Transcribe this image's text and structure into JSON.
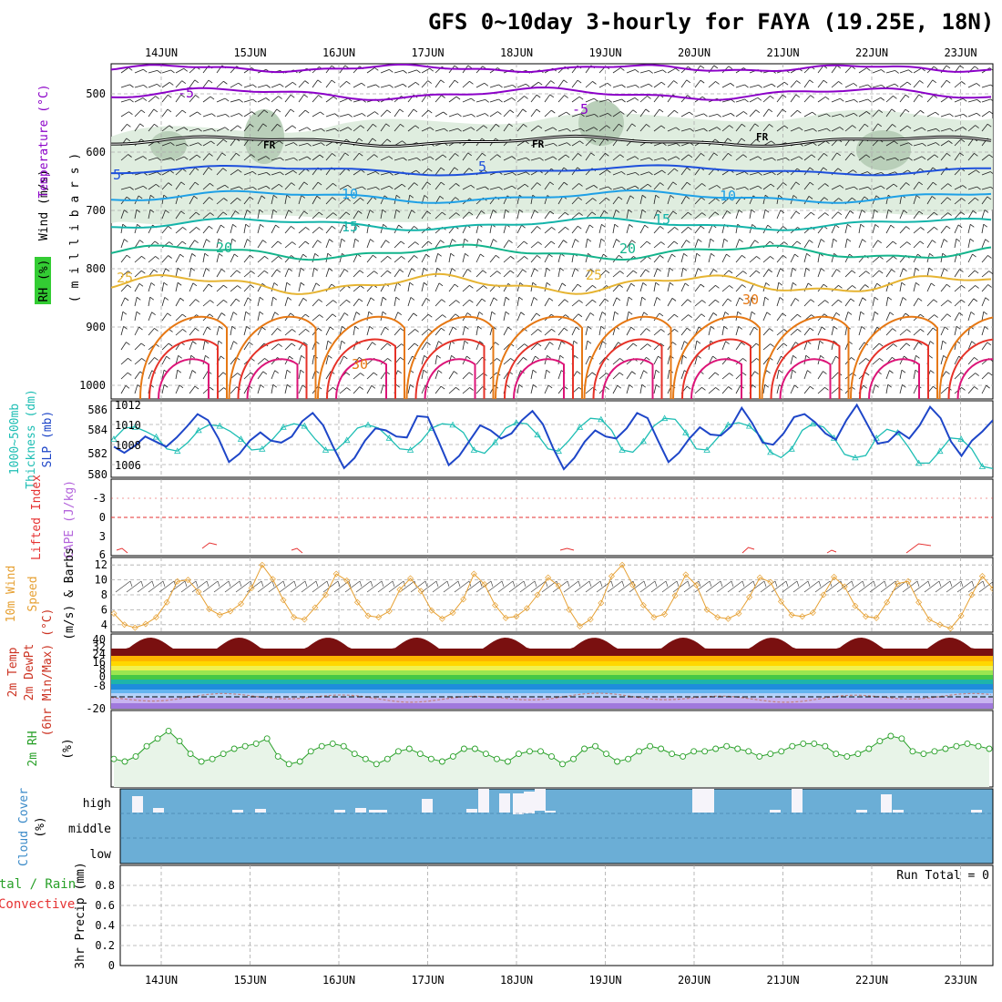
{
  "title": "GFS 0~10day 3-hourly for FAYA (19.25E, 18N)",
  "dates": [
    "14JUN",
    "15JUN",
    "16JUN",
    "17JUN",
    "18JUN",
    "19JUN",
    "20JUN",
    "21JUN",
    "22JUN",
    "23JUN"
  ],
  "colors": {
    "wind_line": "#000000",
    "temp_cold": "#8b00c8",
    "temp_blue": "#1e50dc",
    "temp_cyan": "#1ea0e6",
    "temp_teal": "#14b4aa",
    "temp_green": "#14b48c",
    "temp_yellow": "#e6b432",
    "temp_orange": "#e67814",
    "temp_red": "#e63228",
    "temp_pink": "#dc1478",
    "thickness": "#1ebeb4",
    "slp": "#1e46c8",
    "lifted": "#e63232",
    "cape": "#b464dc",
    "wind10": "#e6a032",
    "rh2m": "#28a028",
    "cloud": "#6baed6",
    "precip_total": "#28a028",
    "precip_conv": "#e63232"
  },
  "panels": {
    "upper": {
      "label_wind": "Wind (m/s)",
      "label_temp": "Temperature (°C)",
      "label_rh": "RH (%)",
      "label_levels": "( m i l l i b a r s )",
      "levels": [
        "500",
        "600",
        "700",
        "800",
        "900",
        "1000"
      ],
      "contour_labels": [
        "-5",
        "-5",
        "5",
        "5",
        "10",
        "10",
        "15",
        "15",
        "20",
        "20",
        "25",
        "25",
        "30",
        "30",
        "FR",
        "FR",
        "FR"
      ]
    },
    "thickness": {
      "label_a": "1000~500mb",
      "label_b": "Thickness (dm)",
      "label_c": "SLP (mb)",
      "left_ticks": [
        "586",
        "584",
        "582",
        "580"
      ],
      "right_ticks": [
        "1012",
        "1010",
        "1008",
        "1006"
      ]
    },
    "stability": {
      "label_a": "Lifted Index",
      "label_b": "CAPE (J/kg)",
      "ticks": [
        "-3",
        "0",
        "3",
        "6"
      ]
    },
    "wind10": {
      "label_a": "10m Wind",
      "label_b": "Speed",
      "label_c": "(m/s) & Barbs",
      "ticks": [
        "12",
        "10",
        "8",
        "6",
        "4"
      ]
    },
    "temp2m": {
      "label_a": "2m Temp",
      "label_b": "2m DewPt",
      "label_c": "(6hr Min/Max) (°C)",
      "ticks": [
        "40",
        "32",
        "24",
        "16",
        "8",
        "0",
        "-8",
        "-20"
      ]
    },
    "rh2m": {
      "label_a": "2m RH",
      "label_b": "(%)"
    },
    "cloud": {
      "label_a": "Cloud Cover",
      "label_b": "(%)",
      "ticks": [
        "high",
        "middle",
        "low"
      ]
    },
    "precip": {
      "label_a": "Total / Rain",
      "label_b": "Convective",
      "label_c": "3hr Precip (mm)",
      "ticks": [
        "0.8",
        "0.6",
        "0.4",
        "0.2",
        "0"
      ],
      "run_total": "Run Total = 0"
    }
  },
  "chart_data": [
    {
      "type": "line",
      "name": "1000-500mb thickness",
      "ylabel": "Thickness (dm)",
      "ylim": [
        580,
        587
      ],
      "values": [
        583.5,
        584.5,
        584.6,
        584.2,
        583.7,
        582.6,
        582.4,
        583.2,
        584.3,
        584.8,
        584.7,
        584.2,
        583.5,
        582.5,
        582.6,
        583.5,
        584.6,
        584.9,
        584.7,
        583.5,
        582.5,
        582.5,
        583.4,
        584.5,
        584.8,
        584.5,
        583.6,
        582.6,
        582.5,
        583.3,
        584.5,
        584.9,
        584.8,
        584.1,
        582.5,
        582.2,
        583.2,
        584.5,
        585.0,
        584.9,
        583.9,
        582.6,
        582.4,
        583.4,
        584.6,
        585.4,
        585.3,
        584.3,
        582.5,
        582.3,
        583.3,
        584.7,
        585.4,
        585.3,
        584.1,
        582.6,
        582.5,
        583.6,
        584.8,
        585.0,
        584.7,
        583.8,
        582.3,
        581.8,
        582.6,
        584.3,
        584.9,
        584.6,
        583.6,
        582.1,
        581.8,
        582.0,
        583.6,
        584.4,
        584.1,
        582.8,
        581.3,
        581.3,
        582.4,
        583.6,
        583.5,
        582.6,
        581.0,
        580.8
      ]
    },
    {
      "type": "line",
      "name": "SLP",
      "ylabel": "SLP (mb)",
      "ylim": [
        1005,
        1012.5
      ],
      "values": [
        1008.0,
        1007.4,
        1008.1,
        1009.0,
        1008.5,
        1008.0,
        1008.9,
        1010.0,
        1011.2,
        1010.6,
        1008.8,
        1006.5,
        1007.3,
        1008.6,
        1009.4,
        1008.6,
        1008.4,
        1009.0,
        1010.5,
        1011.3,
        1010.1,
        1007.9,
        1005.9,
        1006.9,
        1008.6,
        1009.8,
        1009.6,
        1009.0,
        1008.9,
        1011.0,
        1010.9,
        1008.6,
        1006.2,
        1007.1,
        1008.6,
        1010.1,
        1009.6,
        1008.8,
        1009.3,
        1010.6,
        1011.5,
        1010.2,
        1007.8,
        1005.8,
        1006.9,
        1008.5,
        1009.6,
        1009.0,
        1008.8,
        1009.8,
        1011.3,
        1010.8,
        1008.6,
        1006.5,
        1007.4,
        1008.8,
        1009.9,
        1009.2,
        1009.1,
        1010.0,
        1011.8,
        1010.3,
        1008.4,
        1008.2,
        1009.3,
        1010.9,
        1011.2,
        1010.4,
        1009.3,
        1008.7,
        1010.6,
        1012.1,
        1010.2,
        1008.3,
        1008.5,
        1009.5,
        1008.8,
        1010.1,
        1011.9,
        1010.8,
        1008.5,
        1007.1,
        1008.6,
        1009.5,
        1010.6
      ]
    },
    {
      "type": "line",
      "name": "10m wind speed",
      "ylabel": "(m/s)",
      "ylim": [
        3,
        13
      ],
      "values": [
        5.5,
        4.0,
        3.6,
        4.1,
        5.0,
        7.0,
        9.8,
        10.0,
        8.4,
        6.1,
        5.3,
        5.8,
        6.8,
        8.9,
        12.0,
        10.1,
        7.3,
        5.0,
        4.7,
        6.3,
        8.0,
        10.8,
        9.9,
        7.0,
        5.2,
        5.0,
        5.8,
        8.7,
        10.2,
        8.5,
        5.9,
        4.8,
        5.6,
        7.4,
        10.8,
        9.4,
        6.6,
        4.9,
        5.1,
        6.2,
        8.0,
        10.3,
        9.2,
        6.0,
        3.8,
        4.7,
        6.9,
        10.5,
        12.0,
        9.3,
        6.6,
        5.0,
        5.4,
        7.9,
        10.7,
        9.3,
        6.0,
        5.0,
        4.8,
        5.5,
        7.7,
        10.3,
        9.7,
        7.1,
        5.3,
        5.1,
        5.6,
        8.0,
        10.4,
        9.1,
        6.5,
        5.1,
        4.9,
        7.0,
        9.5,
        9.8,
        7.0,
        4.7,
        4.0,
        3.5,
        5.2,
        8.0,
        10.5,
        8.8
      ]
    },
    {
      "type": "area",
      "name": "2m RH",
      "ylabel": "(%)",
      "ylim": [
        0,
        30
      ],
      "values": [
        11,
        10,
        12,
        16,
        19,
        22,
        18,
        13,
        10,
        11,
        13,
        15,
        16,
        17,
        19,
        12,
        9,
        10,
        14,
        16,
        17,
        16,
        13,
        11,
        9,
        11,
        14,
        15,
        13,
        11,
        10,
        12,
        15,
        15,
        13,
        11,
        10,
        13,
        14,
        14,
        12,
        9,
        11,
        15,
        16,
        13,
        10,
        11,
        14,
        16,
        15,
        13,
        12,
        14,
        14,
        15,
        16,
        15,
        14,
        12,
        13,
        14,
        16,
        17,
        17,
        16,
        13,
        12,
        13,
        15,
        18,
        20,
        19,
        14,
        13,
        14,
        15,
        16,
        17,
        16,
        15
      ]
    }
  ]
}
